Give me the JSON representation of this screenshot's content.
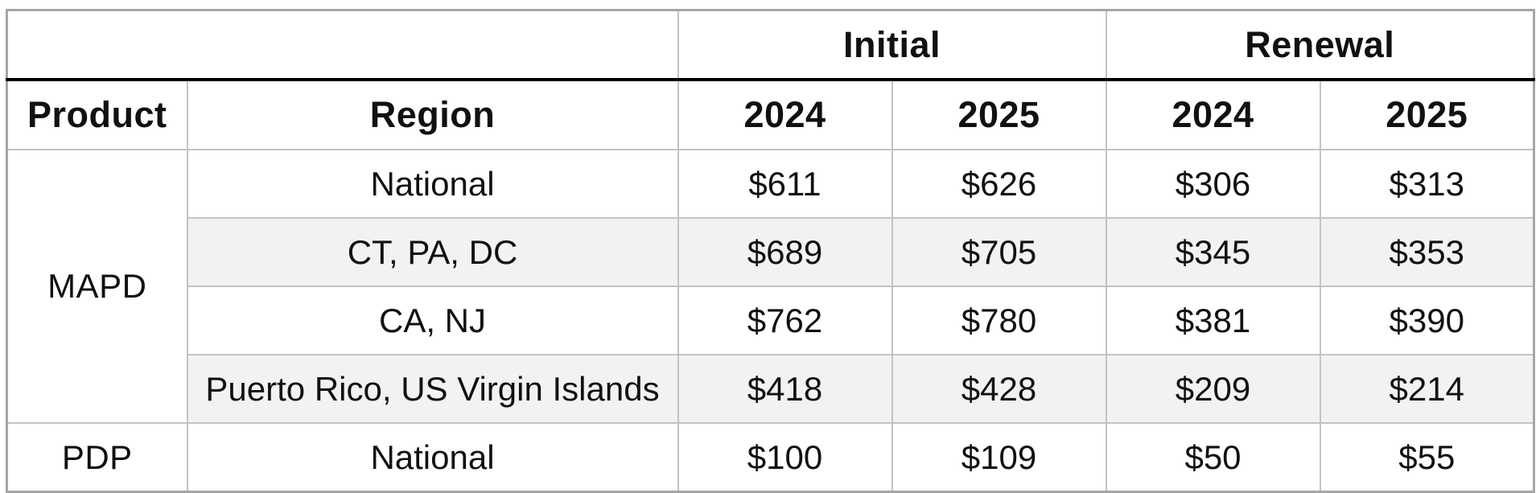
{
  "header": {
    "groups": [
      {
        "label": "Initial"
      },
      {
        "label": "Renewal"
      }
    ],
    "columns": {
      "product": "Product",
      "region": "Region",
      "initial_2024": "2024",
      "initial_2025": "2025",
      "renewal_2024": "2024",
      "renewal_2025": "2025"
    }
  },
  "body": {
    "groups": [
      {
        "product": "MAPD",
        "rows": [
          {
            "region": "National",
            "values": [
              "$611",
              "$626",
              "$306",
              "$313"
            ]
          },
          {
            "region": "CT, PA, DC",
            "values": [
              "$689",
              "$705",
              "$345",
              "$353"
            ]
          },
          {
            "region": "CA, NJ",
            "values": [
              "$762",
              "$780",
              "$381",
              "$390"
            ]
          },
          {
            "region": "Puerto Rico, US Virgin Islands",
            "values": [
              "$418",
              "$428",
              "$209",
              "$214"
            ]
          }
        ]
      },
      {
        "product": "PDP",
        "rows": [
          {
            "region": "National",
            "values": [
              "$100",
              "$109",
              "$50",
              "$55"
            ]
          }
        ]
      }
    ]
  },
  "colors": {
    "row_shade": "#f2f2f2",
    "inner_border": "#c3c3c3",
    "outer_border": "#a6a6a6",
    "header_rule": "#000000",
    "text": "#111111"
  }
}
